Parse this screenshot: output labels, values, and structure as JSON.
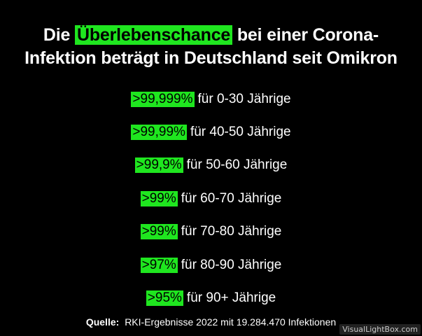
{
  "title": {
    "line1_prefix": "Die",
    "line1_highlight": "Überlebenschance",
    "line1_suffix": "bei einer Corona-",
    "line2": "Infektion beträgt in Deutschland seit Omikron"
  },
  "rows": [
    {
      "pct": ">99,999%",
      "text": "für 0-30 Jährige"
    },
    {
      "pct": ">99,99%",
      "text": "für 40-50 Jährige"
    },
    {
      "pct": ">99,9%",
      "text": "für 50-60 Jährige"
    },
    {
      "pct": ">99%",
      "text": "für 60-70 Jährige"
    },
    {
      "pct": ">99%",
      "text": "für 70-80 Jährige"
    },
    {
      "pct": ">97%",
      "text": "für 80-90 Jährige"
    },
    {
      "pct": ">95%",
      "text": "für 90+ Jährige"
    }
  ],
  "source": {
    "label": "Quelle:",
    "text": "RKI-Ergebnisse 2022 mit 19.284.470 Infektionen"
  },
  "watermark": "VisualLightBox.com",
  "colors": {
    "background": "#000000",
    "highlight": "#1fe61f",
    "text": "#ffffff"
  }
}
